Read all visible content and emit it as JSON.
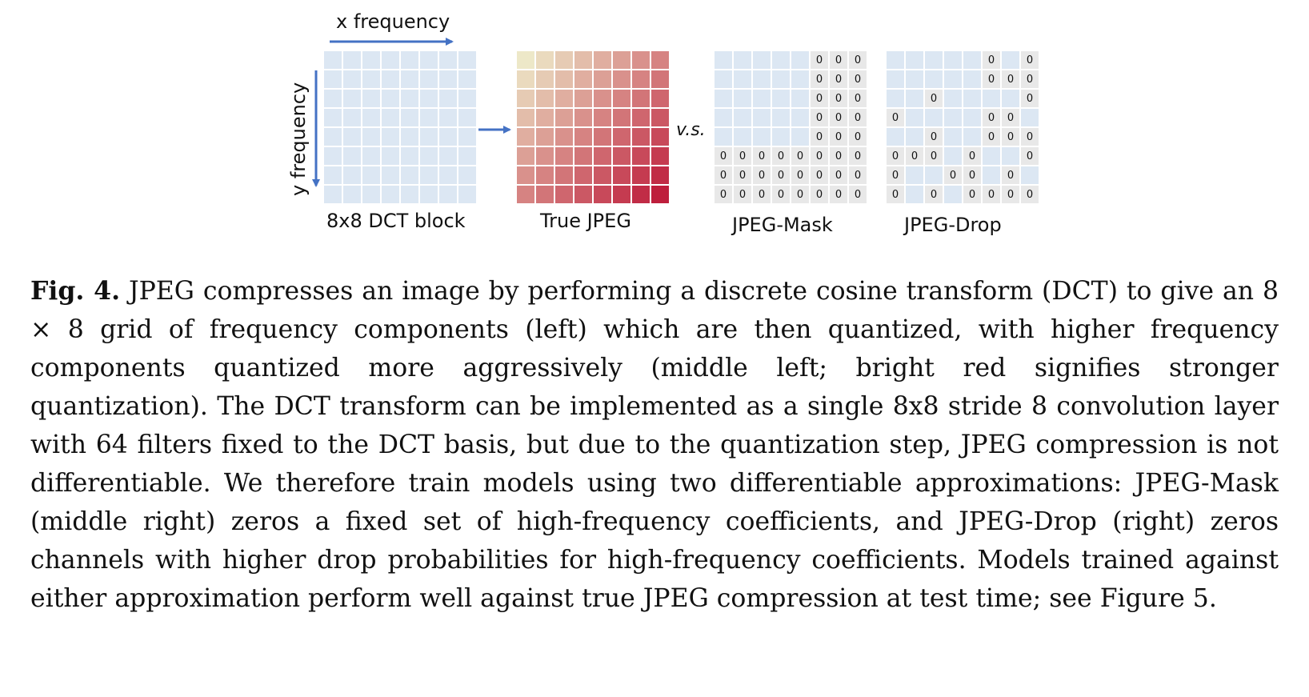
{
  "figure": {
    "x_axis_label": "x frequency",
    "y_axis_label": "y frequency",
    "vs_label": "v.s.",
    "panels": {
      "dct": "8x8 DCT block",
      "true_jpeg": "True JPEG",
      "mask": "JPEG-Mask",
      "drop": "JPEG-Drop"
    },
    "zero_glyph": "0",
    "mask_zero_pattern": [
      [
        0,
        0,
        0,
        0,
        0,
        1,
        1,
        1
      ],
      [
        0,
        0,
        0,
        0,
        0,
        1,
        1,
        1
      ],
      [
        0,
        0,
        0,
        0,
        0,
        1,
        1,
        1
      ],
      [
        0,
        0,
        0,
        0,
        0,
        1,
        1,
        1
      ],
      [
        0,
        0,
        0,
        0,
        0,
        1,
        1,
        1
      ],
      [
        1,
        1,
        1,
        1,
        1,
        1,
        1,
        1
      ],
      [
        1,
        1,
        1,
        1,
        1,
        1,
        1,
        1
      ],
      [
        1,
        1,
        1,
        1,
        1,
        1,
        1,
        1
      ]
    ],
    "drop_zero_pattern": [
      [
        0,
        0,
        0,
        0,
        0,
        1,
        0,
        1
      ],
      [
        0,
        0,
        0,
        0,
        0,
        1,
        1,
        1
      ],
      [
        0,
        0,
        1,
        0,
        0,
        0,
        0,
        1
      ],
      [
        1,
        0,
        0,
        0,
        0,
        1,
        1,
        0
      ],
      [
        0,
        0,
        1,
        0,
        0,
        1,
        1,
        1
      ],
      [
        1,
        1,
        1,
        0,
        1,
        0,
        0,
        1
      ],
      [
        1,
        0,
        0,
        1,
        1,
        0,
        1,
        0
      ],
      [
        1,
        0,
        1,
        0,
        1,
        1,
        1,
        1
      ]
    ],
    "colors": {
      "dct_cell": "#dce7f3",
      "zeroed_cell": "#e8e8e8",
      "arrow": "#4472c4",
      "jpeg_low": "#ede8c8",
      "jpeg_high": "#be1e3c"
    }
  },
  "caption": {
    "prefix": "Fig. 4.",
    "text": "JPEG compresses an image by performing a discrete cosine transform (DCT) to give an 8 × 8 grid of frequency components (left) which are then quantized, with higher frequency components quantized more aggressively (middle left; bright red signifies stronger quantization). The DCT transform can be implemented as a single 8x8 stride 8 convolution layer with 64 filters fixed to the DCT basis, but due to the quantization step, JPEG compression is not differentiable. We therefore train models using two differentiable approximations: JPEG-Mask (middle right) zeros a fixed set of high-frequency coefficients, and JPEG-Drop (right) zeros channels with higher drop probabilities for high-frequency coefficients. Models trained against either approximation perform well against true JPEG compression at test time; see Figure 5."
  }
}
